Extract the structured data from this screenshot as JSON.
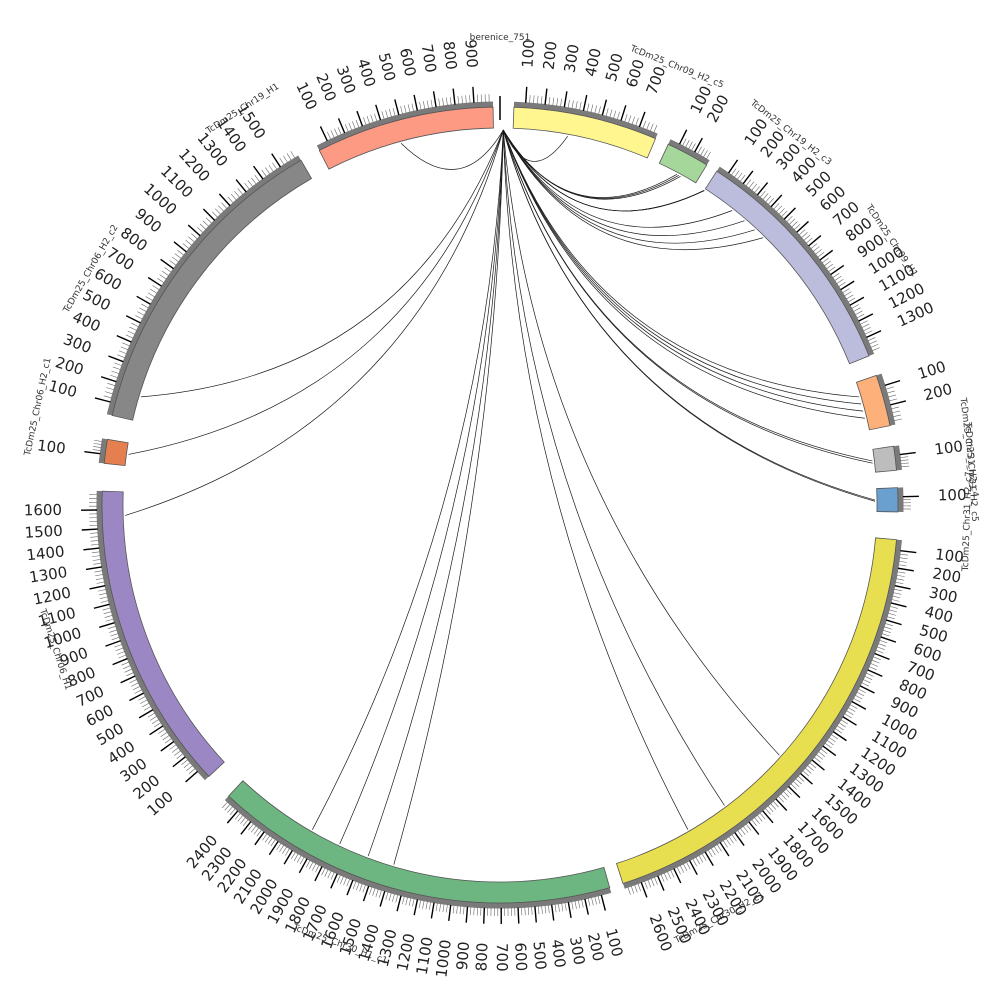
{
  "hub": {
    "label": "berenice_751"
  },
  "segments": [
    {
      "name": "TcDm25_Chr09_H2_c5",
      "color": "#fff68f",
      "ticks": [
        100,
        200,
        300,
        400,
        500,
        600,
        700
      ]
    },
    {
      "name": "TcDm25_Chr19_H2_c3",
      "color": "#a6d79a",
      "ticks": [
        100,
        200
      ]
    },
    {
      "name": "TcDm25_Chr09_H1",
      "color": "#bcbddc",
      "ticks": [
        100,
        200,
        300,
        400,
        500,
        600,
        700,
        800,
        900,
        1000,
        1100,
        1200,
        1300
      ]
    },
    {
      "name": "TcDm25_Chr31_H2_c4",
      "color": "#fdb07a",
      "ticks": [
        100,
        200
      ]
    },
    {
      "name": "TcDm25_Chr31_H2_c5",
      "color": "#bdbdbd",
      "ticks": [
        100
      ]
    },
    {
      "name": "TcDm25_Chr31_H2_c7",
      "color": "#6aa0d0",
      "ticks": [
        100
      ]
    },
    {
      "name": "TcDm25_Chr30_H2_c1",
      "color": "#e8df50",
      "ticks": [
        100,
        200,
        300,
        400,
        500,
        600,
        700,
        800,
        900,
        1000,
        1100,
        1200,
        1300,
        1400,
        1500,
        1600,
        1700,
        1800,
        1900,
        2000,
        2100,
        2200,
        2300,
        2400,
        2500,
        2600
      ]
    },
    {
      "name": "TcDm25_Chr30_H1_c1",
      "color": "#6db581",
      "ticks": [
        100,
        200,
        300,
        400,
        500,
        600,
        700,
        800,
        900,
        1000,
        1100,
        1200,
        1300,
        1400,
        1500,
        1600,
        1700,
        1800,
        1900,
        2000,
        2100,
        2200,
        2300,
        2400
      ]
    },
    {
      "name": "TcDm25_Chr06_H1",
      "color": "#9b87c4",
      "ticks": [
        100,
        200,
        300,
        400,
        500,
        600,
        700,
        800,
        900,
        1000,
        1100,
        1200,
        1300,
        1400,
        1500,
        1600
      ]
    },
    {
      "name": "TcDm25_Chr06_H2_c1",
      "color": "#e57f50",
      "ticks": [
        100
      ]
    },
    {
      "name": "TcDm25_Chr06_H2_c2",
      "color": "#878787",
      "ticks": [
        100,
        200,
        300,
        400,
        500,
        600,
        700,
        800,
        900,
        1000,
        1100,
        1200,
        1300,
        1400,
        1500
      ]
    },
    {
      "name": "TcDm25_Chr19_H1",
      "color": "#fc9a84",
      "ticks": [
        100,
        200,
        300,
        400,
        500,
        600,
        700,
        800,
        900
      ]
    }
  ]
}
